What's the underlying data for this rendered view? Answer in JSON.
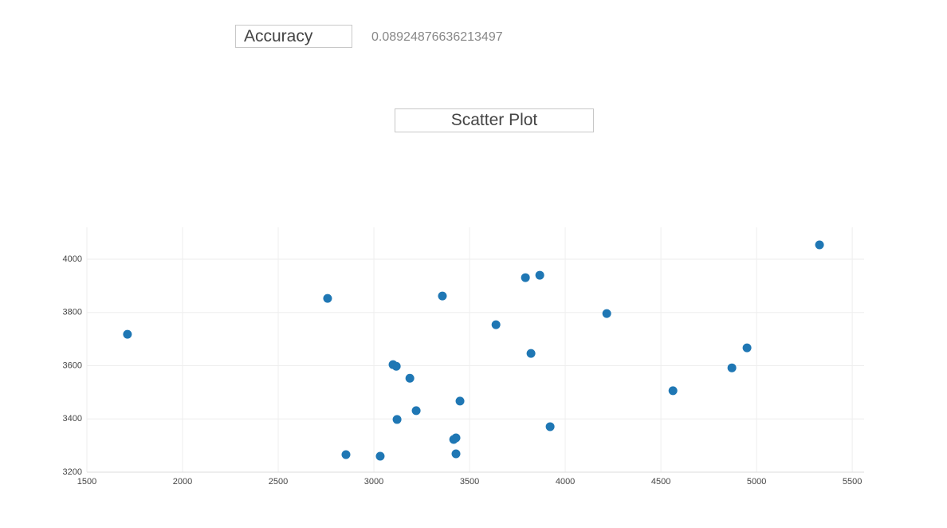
{
  "accuracy": {
    "label": "Accuracy",
    "value": 0.08924876636213497
  },
  "chart_data": {
    "type": "scatter",
    "title": "Scatter Plot",
    "x": [
      1712,
      2758,
      2854,
      3033,
      3100,
      3117,
      3121,
      3188,
      3221,
      3358,
      3417,
      3429,
      3429,
      3450,
      3638,
      3792,
      3821,
      3867,
      3921,
      4217,
      4563,
      4871,
      4950,
      5329
    ],
    "y": [
      3718,
      3853,
      3266,
      3260,
      3604,
      3598,
      3398,
      3553,
      3431,
      3862,
      3323,
      3329,
      3269,
      3467,
      3754,
      3931,
      3646,
      3940,
      3371,
      3796,
      3506,
      3592,
      3667,
      4054
    ],
    "color": "#1f77b4",
    "xlim": [
      1500,
      5562
    ],
    "ylim": [
      3200,
      4120
    ],
    "xticks": [
      1500,
      2000,
      2500,
      3000,
      3500,
      4000,
      4500,
      5000,
      5500
    ],
    "yticks": [
      3200,
      3400,
      3600,
      3800,
      4000
    ],
    "grid": true
  }
}
